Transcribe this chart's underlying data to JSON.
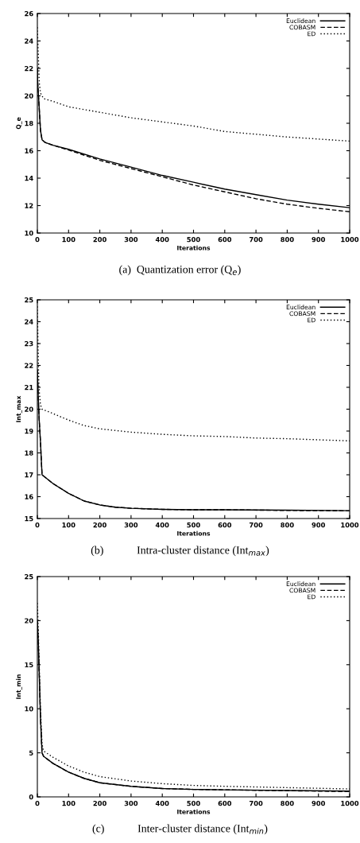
{
  "chart_data": [
    {
      "type": "line",
      "xlabel": "Iterations",
      "ylabel": "Q_e",
      "xlim": [
        0,
        1000
      ],
      "xticks": [
        0,
        100,
        200,
        300,
        400,
        500,
        600,
        700,
        800,
        900,
        1000
      ],
      "ylim": [
        10,
        26
      ],
      "yticks": [
        10,
        12,
        14,
        16,
        18,
        20,
        22,
        24,
        26
      ],
      "grid": false,
      "legend": "top right",
      "annotations": [
        "(a)  Quantization error (Q$_{e}$)"
      ],
      "series": [
        {
          "name": "Euclidean",
          "color": "#000000",
          "line_style": "solid",
          "x": [
            0,
            1,
            5,
            10,
            15,
            25,
            50,
            100,
            200,
            300,
            400,
            500,
            600,
            700,
            800,
            900,
            1000
          ],
          "values": [
            22,
            21,
            19.5,
            17.5,
            16.8,
            16.6,
            16.4,
            16.1,
            15.4,
            14.8,
            14.2,
            13.7,
            13.2,
            12.8,
            12.4,
            12.1,
            11.85
          ]
        },
        {
          "name": "COBASM",
          "color": "#000000",
          "line_style": "dashed",
          "x": [
            0,
            1,
            5,
            10,
            15,
            25,
            50,
            100,
            200,
            300,
            400,
            500,
            600,
            700,
            800,
            900,
            1000
          ],
          "values": [
            22,
            21,
            19.5,
            17.5,
            16.8,
            16.6,
            16.4,
            16.05,
            15.3,
            14.7,
            14.1,
            13.5,
            13.0,
            12.5,
            12.1,
            11.8,
            11.55
          ]
        },
        {
          "name": "ED",
          "color": "#000000",
          "line_style": "dotted",
          "x": [
            0,
            3,
            6,
            10,
            20,
            50,
            100,
            200,
            300,
            400,
            500,
            600,
            700,
            800,
            900,
            1000
          ],
          "values": [
            25,
            23,
            21,
            20.2,
            19.8,
            19.6,
            19.2,
            18.8,
            18.4,
            18.1,
            17.8,
            17.4,
            17.2,
            17.0,
            16.85,
            16.7
          ]
        }
      ]
    },
    {
      "type": "line",
      "xlabel": "Iterations",
      "ylabel": "Int_max",
      "xlim": [
        0,
        1000
      ],
      "xticks": [
        0,
        100,
        200,
        300,
        400,
        500,
        600,
        700,
        800,
        900,
        1000
      ],
      "ylim": [
        15,
        25
      ],
      "yticks": [
        15,
        16,
        17,
        18,
        19,
        20,
        21,
        22,
        23,
        24,
        25
      ],
      "grid": false,
      "legend": "top right",
      "annotations": [
        "(b)            Intra-cluster distance (Int$_{max}$)"
      ],
      "series": [
        {
          "name": "Euclidean",
          "color": "#000000",
          "line_style": "solid",
          "x": [
            0,
            3,
            6,
            10,
            15,
            50,
            100,
            150,
            200,
            250,
            300,
            400,
            500,
            600,
            800,
            1000
          ],
          "values": [
            21.8,
            20.5,
            19.5,
            18.5,
            17.0,
            16.6,
            16.15,
            15.8,
            15.62,
            15.52,
            15.47,
            15.42,
            15.4,
            15.4,
            15.38,
            15.36
          ]
        },
        {
          "name": "COBASM",
          "color": "#000000",
          "line_style": "dashed",
          "x": [
            0,
            3,
            6,
            10,
            15,
            50,
            100,
            150,
            200,
            250,
            300,
            400,
            500,
            600,
            800,
            1000
          ],
          "values": [
            21.8,
            20.5,
            19.5,
            18.5,
            17.0,
            16.6,
            16.15,
            15.8,
            15.62,
            15.52,
            15.47,
            15.42,
            15.4,
            15.4,
            15.37,
            15.35
          ]
        },
        {
          "name": "ED",
          "color": "#000000",
          "line_style": "dotted",
          "x": [
            0,
            2,
            5,
            10,
            15,
            50,
            100,
            150,
            200,
            300,
            400,
            500,
            600,
            700,
            800,
            900,
            1000
          ],
          "values": [
            24.7,
            23,
            21,
            20.2,
            20.0,
            19.8,
            19.5,
            19.25,
            19.1,
            18.95,
            18.85,
            18.78,
            18.75,
            18.68,
            18.65,
            18.6,
            18.55
          ]
        }
      ]
    },
    {
      "type": "line",
      "xlabel": "Iterations",
      "ylabel": "Int_min",
      "xlim": [
        0,
        1000
      ],
      "xticks": [
        0,
        100,
        200,
        300,
        400,
        500,
        600,
        700,
        800,
        900,
        1000
      ],
      "ylim": [
        0,
        25
      ],
      "yticks": [
        0,
        5,
        10,
        15,
        20,
        25
      ],
      "grid": false,
      "legend": "top right",
      "annotations": [
        "(c)            Inter-cluster distance (Int$_{min}$)"
      ],
      "series": [
        {
          "name": "Euclidean",
          "color": "#000000",
          "line_style": "solid",
          "x": [
            0,
            3,
            6,
            10,
            15,
            20,
            50,
            100,
            150,
            200,
            300,
            400,
            500,
            600,
            800,
            1000
          ],
          "values": [
            20,
            17.5,
            14,
            9,
            5.0,
            4.6,
            3.8,
            2.8,
            2.1,
            1.6,
            1.2,
            0.95,
            0.85,
            0.8,
            0.72,
            0.65
          ]
        },
        {
          "name": "COBASM",
          "color": "#000000",
          "line_style": "dashed",
          "x": [
            0,
            3,
            6,
            10,
            15,
            20,
            50,
            100,
            150,
            200,
            300,
            400,
            500,
            600,
            800,
            1000
          ],
          "values": [
            20,
            17.5,
            14,
            9,
            5.0,
            4.6,
            3.8,
            2.8,
            2.1,
            1.6,
            1.2,
            0.95,
            0.85,
            0.8,
            0.7,
            0.6
          ]
        },
        {
          "name": "ED",
          "color": "#000000",
          "line_style": "dotted",
          "x": [
            0,
            3,
            6,
            10,
            15,
            20,
            50,
            100,
            150,
            200,
            300,
            400,
            500,
            600,
            800,
            1000
          ],
          "values": [
            22,
            19,
            15,
            10,
            6,
            5.2,
            4.5,
            3.5,
            2.8,
            2.3,
            1.8,
            1.5,
            1.3,
            1.2,
            1.05,
            0.9
          ]
        }
      ]
    }
  ]
}
